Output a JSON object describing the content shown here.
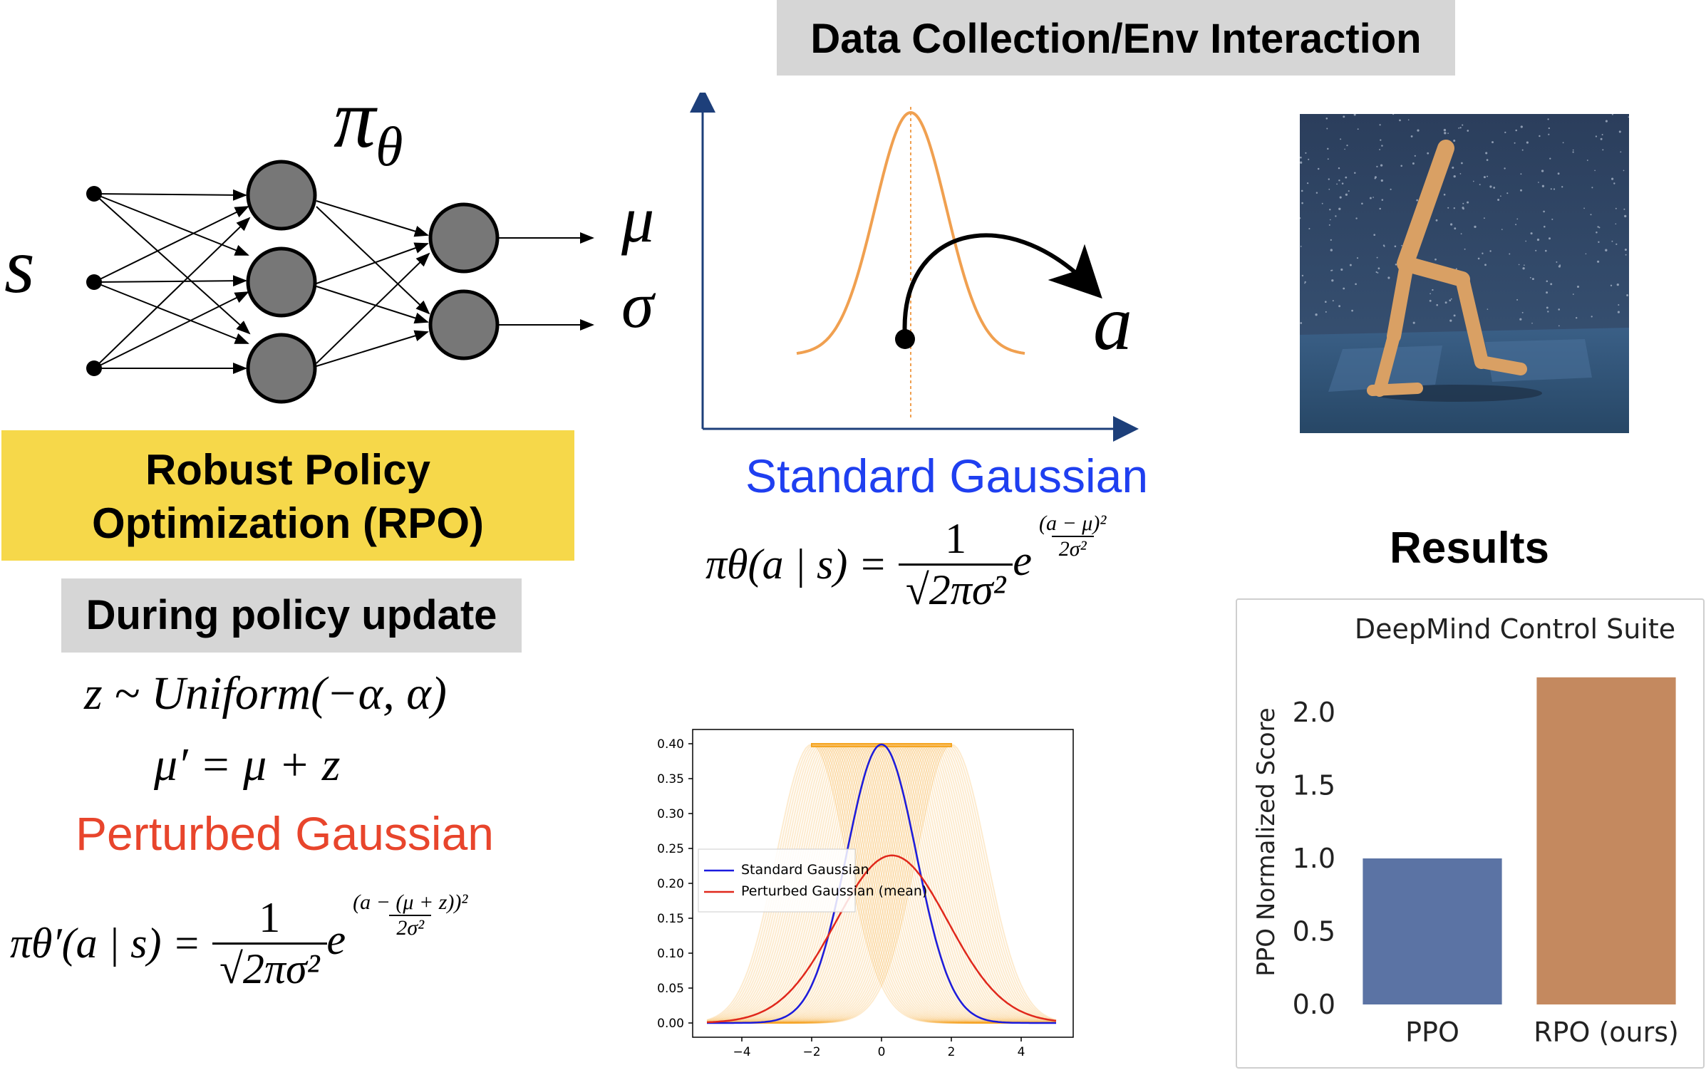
{
  "network": {
    "input_label": "s",
    "policy_label": "π",
    "policy_subscript": "θ",
    "output_mu": "μ",
    "output_sigma": "σ"
  },
  "rpo_box": {
    "line1": "Robust Policy",
    "line2": "Optimization (RPO)"
  },
  "policy_update": {
    "header": "During policy update",
    "eq_z": "z ~ Uniform(−α, α)",
    "eq_mu": "μ′ = μ + z",
    "perturbed_title": "Perturbed Gaussian",
    "perturbed_color": "#e8452c",
    "formula_lhs": "πθ′(a | s) =",
    "formula_num": "1",
    "formula_den": "√2πσ²",
    "formula_e": "e",
    "formula_exp_num": "(a − (μ + z))²",
    "formula_exp_den": "2σ²"
  },
  "data_collection": {
    "header": "Data Collection/Env Interaction",
    "action_label": "a",
    "standard_title": "Standard Gaussian",
    "standard_color": "#1f3ff0",
    "formula_lhs": "πθ(a | s) =",
    "formula_num": "1",
    "formula_den": "√2πσ²",
    "formula_e": "e",
    "formula_exp_num": "(a − μ)²",
    "formula_exp_den": "2σ²",
    "curve_color": "#f0a050"
  },
  "gaussian_plot": {
    "y_ticks": [
      "0.40",
      "0.35",
      "0.30",
      "0.25",
      "0.20",
      "0.15",
      "0.10",
      "0.05",
      "0.00"
    ],
    "x_ticks": [
      "−4",
      "−2",
      "0",
      "2",
      "4"
    ],
    "legend": [
      {
        "label": "Standard Gaussian",
        "color": "#1a1adf"
      },
      {
        "label": "Perturbed Gaussian (mean)",
        "color": "#e0281c"
      }
    ],
    "band_color": "#f5a623"
  },
  "results": {
    "title": "Results",
    "chart_data": {
      "type": "bar",
      "title": "DeepMind Control Suite",
      "ylabel": "PPO Normalized Score",
      "categories": [
        "PPO",
        "RPO (ours)"
      ],
      "values": [
        1.0,
        2.24
      ],
      "colors": [
        "#5b73a4",
        "#c4895f"
      ],
      "ylim": [
        0,
        2.4
      ],
      "y_ticks": [
        "0.0",
        "0.5",
        "1.0",
        "1.5",
        "2.0"
      ]
    }
  }
}
